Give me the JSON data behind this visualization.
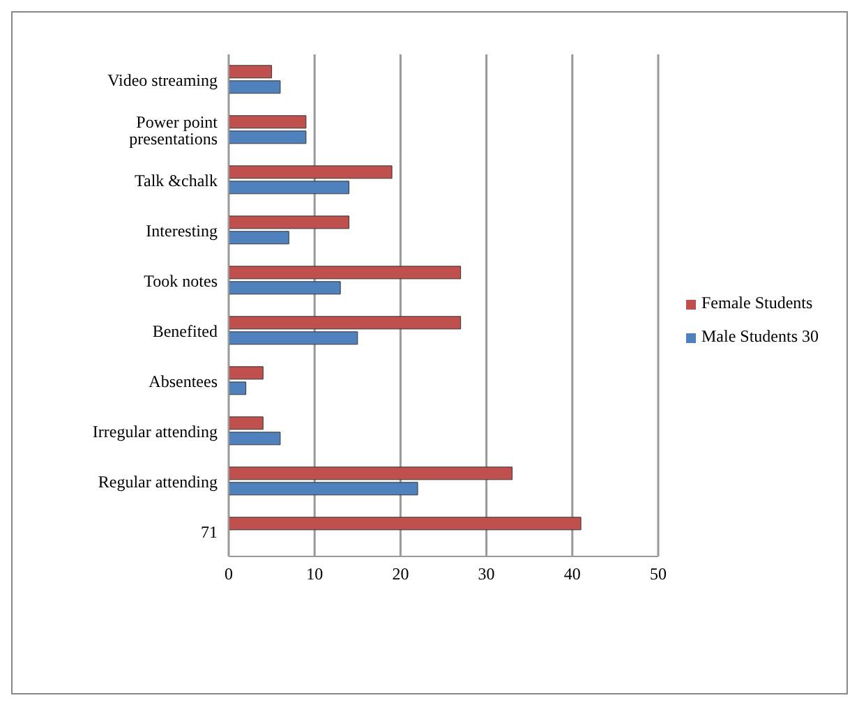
{
  "chart_data": {
    "type": "bar",
    "orientation": "horizontal",
    "categories": [
      "Video streaming",
      "Power point presentations",
      "Talk &chalk",
      "Interesting",
      "Took notes",
      "Benefited",
      "Absentees",
      "Irregular attending",
      "Regular attending",
      "71"
    ],
    "series": [
      {
        "name": "Female Students",
        "color": "#c0504d",
        "values": [
          5,
          9,
          19,
          14,
          27,
          27,
          4,
          4,
          33,
          41
        ]
      },
      {
        "name": "Male Students 30",
        "color": "#4f81bd",
        "values": [
          6,
          9,
          14,
          7,
          13,
          15,
          2,
          6,
          22,
          null
        ]
      }
    ],
    "xlim": [
      0,
      50
    ],
    "xticks": [
      0,
      10,
      20,
      30,
      40,
      50
    ],
    "grid": "x",
    "legend": "right"
  }
}
